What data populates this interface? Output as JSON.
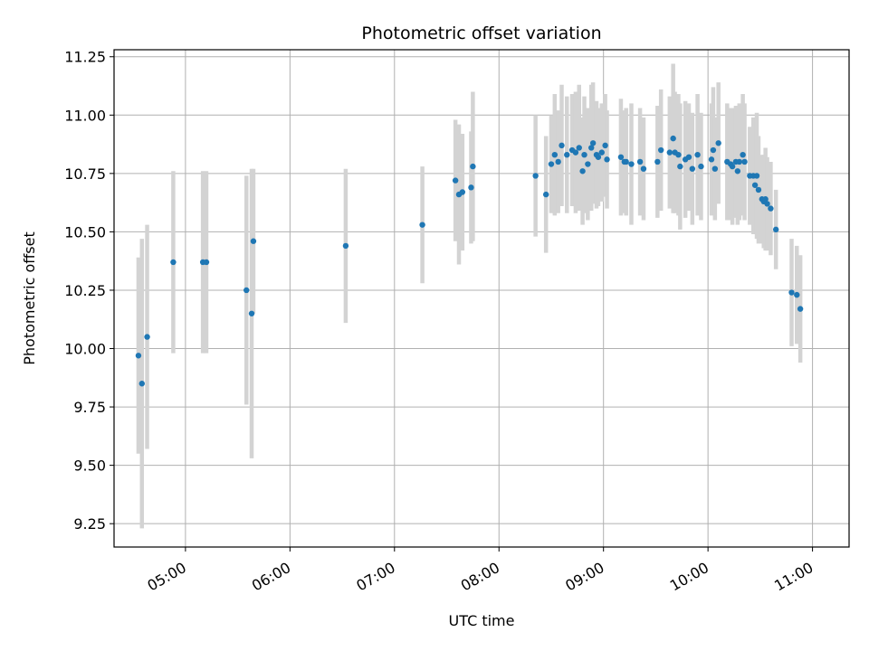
{
  "chart_data": {
    "type": "scatter",
    "title": "Photometric offset variation",
    "xlabel": "UTC time",
    "ylabel": "Photometric offset",
    "grid": true,
    "x_tick_labels": [
      "05:00",
      "06:00",
      "07:00",
      "08:00",
      "09:00",
      "10:00",
      "11:00"
    ],
    "y_tick_labels": [
      "9.25",
      "9.50",
      "9.75",
      "10.00",
      "10.25",
      "10.50",
      "10.75",
      "11.00",
      "11.25"
    ],
    "colors": {
      "points": "#1f77b4",
      "error_bars": "#d3d3d3",
      "grid": "#b0b0b0"
    },
    "series": [
      {
        "x": [
          "04:33",
          "04:35",
          "04:38",
          "04:53",
          "05:10",
          "05:12",
          "05:35",
          "05:38",
          "05:39",
          "06:32",
          "07:16",
          "07:35",
          "07:37",
          "07:39",
          "07:44",
          "07:45",
          "08:21",
          "08:27",
          "08:30",
          "08:32",
          "08:34",
          "08:36",
          "08:39",
          "08:42",
          "08:44",
          "08:46",
          "08:48",
          "08:49",
          "08:51",
          "08:53",
          "08:54",
          "08:56",
          "08:57",
          "08:59",
          "09:01",
          "09:02",
          "09:10",
          "09:12",
          "09:13",
          "09:16",
          "09:21",
          "09:23",
          "09:31",
          "09:33",
          "09:38",
          "09:40",
          "09:41",
          "09:43",
          "09:44",
          "09:47",
          "09:49",
          "09:51",
          "09:54",
          "09:56",
          "10:02",
          "10:03",
          "10:04",
          "10:06",
          "10:11",
          "10:13",
          "10:14",
          "10:16",
          "10:17",
          "10:18",
          "10:20",
          "10:21",
          "10:24",
          "10:26",
          "10:27",
          "10:28",
          "10:29",
          "10:31",
          "10:32",
          "10:33",
          "10:34",
          "10:36",
          "10:39",
          "10:48",
          "10:51",
          "10:53"
        ],
        "y": [
          9.97,
          9.85,
          10.05,
          10.37,
          10.37,
          10.37,
          10.25,
          10.15,
          10.46,
          10.44,
          10.53,
          10.72,
          10.66,
          10.67,
          10.69,
          10.78,
          10.74,
          10.66,
          10.79,
          10.83,
          10.8,
          10.87,
          10.83,
          10.85,
          10.84,
          10.86,
          10.76,
          10.83,
          10.79,
          10.86,
          10.88,
          10.83,
          10.82,
          10.84,
          10.87,
          10.81,
          10.82,
          10.8,
          10.8,
          10.79,
          10.8,
          10.77,
          10.8,
          10.85,
          10.84,
          10.9,
          10.84,
          10.83,
          10.78,
          10.81,
          10.82,
          10.77,
          10.83,
          10.78,
          10.81,
          10.85,
          10.77,
          10.88,
          10.8,
          10.79,
          10.78,
          10.8,
          10.76,
          10.8,
          10.83,
          10.8,
          10.74,
          10.74,
          10.7,
          10.74,
          10.68,
          10.64,
          10.63,
          10.64,
          10.62,
          10.6,
          10.51,
          10.24,
          10.23,
          10.17
        ],
        "err": [
          0.42,
          0.62,
          0.48,
          0.39,
          0.39,
          0.39,
          0.49,
          0.62,
          0.31,
          0.33,
          0.25,
          0.26,
          0.3,
          0.25,
          0.24,
          0.32,
          0.26,
          0.25,
          0.21,
          0.26,
          0.22,
          0.26,
          0.25,
          0.24,
          0.26,
          0.27,
          0.23,
          0.25,
          0.24,
          0.27,
          0.26,
          0.23,
          0.21,
          0.21,
          0.22,
          0.21,
          0.25,
          0.22,
          0.23,
          0.26,
          0.23,
          0.22,
          0.24,
          0.26,
          0.24,
          0.32,
          0.26,
          0.26,
          0.27,
          0.25,
          0.23,
          0.24,
          0.26,
          0.23,
          0.24,
          0.27,
          0.22,
          0.26,
          0.25,
          0.24,
          0.25,
          0.24,
          0.23,
          0.25,
          0.26,
          0.25,
          0.21,
          0.25,
          0.21,
          0.27,
          0.23,
          0.19,
          0.2,
          0.22,
          0.2,
          0.2,
          0.17,
          0.23,
          0.21,
          0.23
        ]
      }
    ],
    "x_range": [
      "04:19",
      "11:21"
    ],
    "ylim": [
      9.15,
      11.28
    ]
  }
}
